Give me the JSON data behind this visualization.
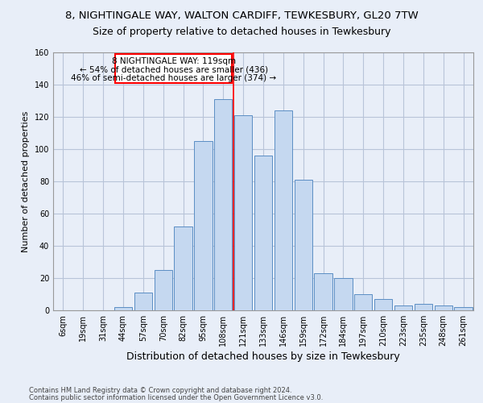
{
  "title": "8, NIGHTINGALE WAY, WALTON CARDIFF, TEWKESBURY, GL20 7TW",
  "subtitle": "Size of property relative to detached houses in Tewkesbury",
  "xlabel": "Distribution of detached houses by size in Tewkesbury",
  "ylabel": "Number of detached properties",
  "categories": [
    "6sqm",
    "19sqm",
    "31sqm",
    "44sqm",
    "57sqm",
    "70sqm",
    "82sqm",
    "95sqm",
    "108sqm",
    "121sqm",
    "133sqm",
    "146sqm",
    "159sqm",
    "172sqm",
    "184sqm",
    "197sqm",
    "210sqm",
    "223sqm",
    "235sqm",
    "248sqm",
    "261sqm"
  ],
  "values": [
    0,
    0,
    0,
    2,
    11,
    25,
    52,
    105,
    131,
    121,
    96,
    124,
    81,
    23,
    20,
    10,
    7,
    3,
    4,
    3,
    2
  ],
  "bar_color": "#c5d8f0",
  "bar_edge_color": "#5b8ec4",
  "ylim": [
    0,
    160
  ],
  "yticks": [
    0,
    20,
    40,
    60,
    80,
    100,
    120,
    140,
    160
  ],
  "property_label": "8 NIGHTINGALE WAY: 119sqm",
  "annotation_line1": "← 54% of detached houses are smaller (436)",
  "annotation_line2": "46% of semi-detached houses are larger (374) →",
  "footer_line1": "Contains HM Land Registry data © Crown copyright and database right 2024.",
  "footer_line2": "Contains public sector information licensed under the Open Government Licence v3.0.",
  "bg_color": "#e8eef8",
  "plot_bg_color": "#e8eef8",
  "grid_color": "#b8c4d8",
  "title_fontsize": 9.5,
  "subtitle_fontsize": 9,
  "xlabel_fontsize": 9,
  "ylabel_fontsize": 8,
  "tick_fontsize": 7,
  "ann_fontsize": 7.5
}
